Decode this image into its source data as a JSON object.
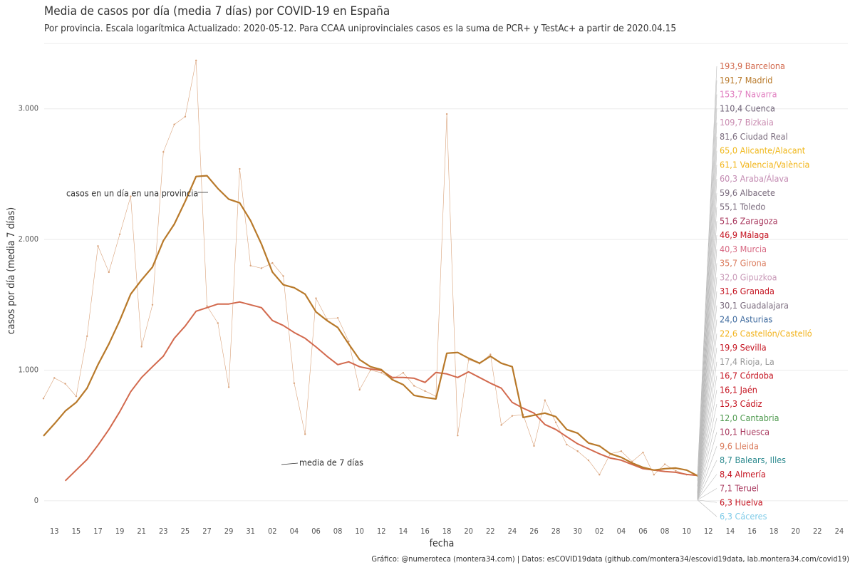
{
  "chart_data": {
    "type": "line",
    "title": "Media de casos por día (media 7 días) por COVID-19 en España",
    "subtitle": "Por provincia. Escala logarítmica  Actualizado: 2020-05-12. Para CCAA uniprovinciales casos es la suma de PCR+ y TestAc+ a partir de 2020.04.15",
    "x_label": "fecha",
    "y_label": "casos por día (media 7 días)",
    "caption": "Gráfico: @numeroteca (montera34.com) | Datos: esCOVID19data (github.com/montera34/escovid19data, lab.montera34.com/covid19)",
    "annotations": [
      "casos en un día en una provincia",
      "media de 7 días"
    ],
    "ylim": [
      -175,
      3500
    ],
    "yticks": [
      0,
      {
        "value": 1000,
        "label": "1.000"
      },
      {
        "value": 2000,
        "label": "2.000"
      },
      {
        "value": 3000,
        "label": "3.000"
      }
    ],
    "grid": true,
    "categories": [
      null,
      "13",
      null,
      "15",
      null,
      "17",
      null,
      "19",
      null,
      "21",
      null,
      "23",
      null,
      "25",
      null,
      "27",
      null,
      "29",
      null,
      "31",
      null,
      "02",
      null,
      "04",
      null,
      "06",
      null,
      "08",
      null,
      "10",
      null,
      "12",
      null,
      "14",
      null,
      "16",
      null,
      "18",
      null,
      "20",
      null,
      "22",
      null,
      "24",
      null,
      "26",
      null,
      "28",
      null,
      "30",
      null,
      "02",
      null,
      "04",
      null,
      "06",
      null,
      "08",
      null,
      "10",
      null,
      "12",
      null,
      "14",
      null,
      "16",
      null,
      "18",
      null,
      "20",
      null,
      "22",
      null,
      "24"
    ],
    "series": [
      {
        "color": "#d9a27a",
        "width": 0.6,
        "values": [
          783,
          940,
          896,
          800,
          1260,
          1950,
          1750,
          2040,
          2330,
          1180,
          1500,
          2670,
          2880,
          2940,
          3370,
          1490,
          1360,
          870,
          2540,
          1800,
          1780,
          1820,
          1720,
          900,
          510,
          1550,
          1390,
          1400,
          1220,
          850,
          1000,
          980,
          930,
          980,
          880,
          840,
          800,
          2960,
          500,
          1080,
          1050,
          1120,
          580,
          650,
          660,
          420,
          770,
          600,
          430,
          380,
          310,
          200,
          360,
          380,
          300,
          370,
          200,
          280,
          230,
          200,
          190,
          null,
          null,
          null,
          null,
          null,
          null,
          null,
          null,
          null,
          null,
          null,
          null,
          null
        ]
      },
      {
        "color": "#d2694d",
        "width": 2,
        "values": [
          null,
          null,
          153,
          235,
          316,
          426,
          546,
          682,
          835,
          944,
          1026,
          1107,
          1244,
          1337,
          1451,
          1478,
          1506,
          1506,
          1522,
          1500,
          1478,
          1380,
          1342,
          1288,
          1244,
          1178,
          1107,
          1042,
          1064,
          1026,
          1009,
          998,
          944,
          944,
          938,
          906,
          982,
          971,
          944,
          987,
          944,
          900,
          862,
          753,
          709,
          671,
          584,
          546,
          491,
          436,
          398,
          360,
          327,
          311,
          278,
          246,
          235,
          224,
          218,
          202,
          193.9,
          null,
          null,
          null,
          null,
          null,
          null,
          null,
          null,
          null,
          null,
          null,
          null,
          null
        ]
      },
      {
        "color": "#b8792a",
        "width": 2.2,
        "values": [
          496,
          589,
          687,
          753,
          862,
          1042,
          1200,
          1380,
          1582,
          1691,
          1789,
          1991,
          2117,
          2291,
          2482,
          2488,
          2390,
          2308,
          2280,
          2144,
          1964,
          1751,
          1653,
          1631,
          1582,
          1446,
          1380,
          1326,
          1200,
          1080,
          1026,
          1004,
          927,
          889,
          807,
          791,
          780,
          1129,
          1135,
          1091,
          1053,
          1107,
          1053,
          1026,
          638,
          655,
          671,
          644,
          546,
          518,
          442,
          420,
          360,
          333,
          289,
          256,
          235,
          246,
          251,
          235,
          191.7,
          null,
          null,
          null,
          null,
          null,
          null,
          null,
          null,
          null,
          null,
          null,
          null,
          null
        ]
      }
    ],
    "end_labels": [
      {
        "value": 193.9,
        "label": "193,9",
        "name": "Barcelona",
        "color": "#d2694d"
      },
      {
        "value": 191.7,
        "label": "191,7",
        "name": "Madrid",
        "color": "#b8792a"
      },
      {
        "value": 153.7,
        "label": "153,7",
        "name": "Navarra",
        "color": "#e07cbf"
      },
      {
        "value": 110.4,
        "label": "110,4",
        "name": "Cuenca",
        "color": "#6f6277"
      },
      {
        "value": 109.7,
        "label": "109,7",
        "name": "Bizkaia",
        "color": "#c98bb0"
      },
      {
        "value": 81.6,
        "label": "81,6",
        "name": "Ciudad Real",
        "color": "#7d6f80"
      },
      {
        "value": 65,
        "label": "65,0",
        "name": "Alicante/Alacant",
        "color": "#f0b81c"
      },
      {
        "value": 61.1,
        "label": "61,1",
        "name": "Valencia/València",
        "color": "#f2b51a"
      },
      {
        "value": 60.3,
        "label": "60,3",
        "name": "Araba/Álava",
        "color": "#c38bb2"
      },
      {
        "value": 59.6,
        "label": "59,6",
        "name": "Albacete",
        "color": "#7a6b7d"
      },
      {
        "value": 55.1,
        "label": "55,1",
        "name": "Toledo",
        "color": "#7a6b7d"
      },
      {
        "value": 51.6,
        "label": "51,6",
        "name": "Zaragoza",
        "color": "#a8385e"
      },
      {
        "value": 46.9,
        "label": "46,9",
        "name": "Málaga",
        "color": "#c4121f"
      },
      {
        "value": 40.3,
        "label": "40,3",
        "name": "Murcia",
        "color": "#d86a84"
      },
      {
        "value": 35.7,
        "label": "35,7",
        "name": "Girona",
        "color": "#db7d5f"
      },
      {
        "value": 32,
        "label": "32,0",
        "name": "Gipuzkoa",
        "color": "#c99ab8"
      },
      {
        "value": 31.6,
        "label": "31,6",
        "name": "Granada",
        "color": "#c4121f"
      },
      {
        "value": 30.1,
        "label": "30,1",
        "name": "Guadalajara",
        "color": "#7a6b7d"
      },
      {
        "value": 24,
        "label": "24,0",
        "name": "Asturias",
        "color": "#3f6b9f"
      },
      {
        "value": 22.6,
        "label": "22,6",
        "name": "Castellón/Castelló",
        "color": "#f2b31d"
      },
      {
        "value": 19.9,
        "label": "19,9",
        "name": "Sevilla",
        "color": "#c4121f"
      },
      {
        "value": 17.4,
        "label": "17,4",
        "name": "Rioja, La",
        "color": "#9a9a9a"
      },
      {
        "value": 16.7,
        "label": "16,7",
        "name": "Córdoba",
        "color": "#c4121f"
      },
      {
        "value": 16.1,
        "label": "16,1",
        "name": "Jaén",
        "color": "#c4121f"
      },
      {
        "value": 15.3,
        "label": "15,3",
        "name": "Cádiz",
        "color": "#c4121f"
      },
      {
        "value": 12,
        "label": "12,0",
        "name": "Cantabria",
        "color": "#4f9a4f"
      },
      {
        "value": 10.1,
        "label": "10,1",
        "name": "Huesca",
        "color": "#a8385e"
      },
      {
        "value": 9.6,
        "label": "9,6",
        "name": "Lleida",
        "color": "#db7d5f"
      },
      {
        "value": 8.7,
        "label": "8,7",
        "name": "Balears, Illes",
        "color": "#2c8a8f"
      },
      {
        "value": 8.4,
        "label": "8,4",
        "name": "Almería",
        "color": "#c4121f"
      },
      {
        "value": 7.1,
        "label": "7,1",
        "name": "Teruel",
        "color": "#a8385e"
      },
      {
        "value": 6.3,
        "label": "6,3",
        "name": "Huelva",
        "color": "#c4121f"
      },
      {
        "value": 6.3,
        "label": "6,3",
        "name": "Cáceres",
        "color": "#7fcbe8"
      }
    ]
  }
}
